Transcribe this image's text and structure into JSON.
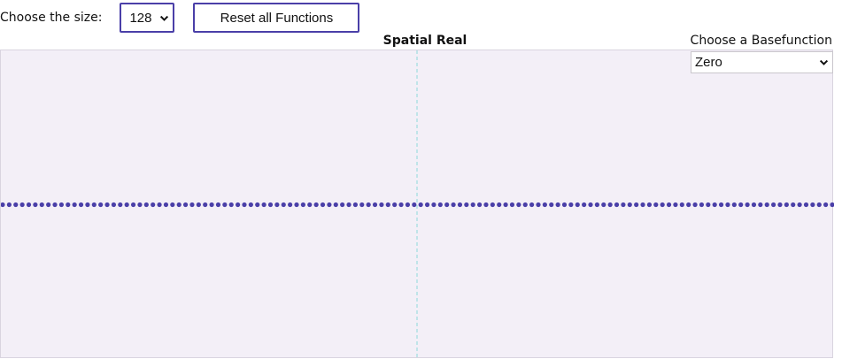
{
  "size_control": {
    "label": "Choose the size:",
    "selected": "128"
  },
  "reset_button": {
    "label": "Reset all Functions"
  },
  "plot": {
    "title": "Spatial Real"
  },
  "basefunction_control": {
    "label": "Choose a Basefunction",
    "selected": "Zero"
  },
  "colors": {
    "accent": "#4a3fa8",
    "plot_background": "#f3eff7",
    "axis_line": "#9fdde0",
    "point": "#4a3fa8"
  },
  "chart_data": {
    "type": "scatter",
    "title": "Spatial Real",
    "n_points": 128,
    "x": [
      0,
      1,
      2,
      3,
      4,
      5,
      6,
      7,
      8,
      9,
      10,
      11,
      12,
      13,
      14,
      15,
      16,
      17,
      18,
      19,
      20,
      21,
      22,
      23,
      24,
      25,
      26,
      27,
      28,
      29,
      30,
      31,
      32,
      33,
      34,
      35,
      36,
      37,
      38,
      39,
      40,
      41,
      42,
      43,
      44,
      45,
      46,
      47,
      48,
      49,
      50,
      51,
      52,
      53,
      54,
      55,
      56,
      57,
      58,
      59,
      60,
      61,
      62,
      63,
      64,
      65,
      66,
      67,
      68,
      69,
      70,
      71,
      72,
      73,
      74,
      75,
      76,
      77,
      78,
      79,
      80,
      81,
      82,
      83,
      84,
      85,
      86,
      87,
      88,
      89,
      90,
      91,
      92,
      93,
      94,
      95,
      96,
      97,
      98,
      99,
      100,
      101,
      102,
      103,
      104,
      105,
      106,
      107,
      108,
      109,
      110,
      111,
      112,
      113,
      114,
      115,
      116,
      117,
      118,
      119,
      120,
      121,
      122,
      123,
      124,
      125,
      126,
      127
    ],
    "y_constant": 0,
    "xlim": [
      0,
      128
    ],
    "grid": false
  }
}
